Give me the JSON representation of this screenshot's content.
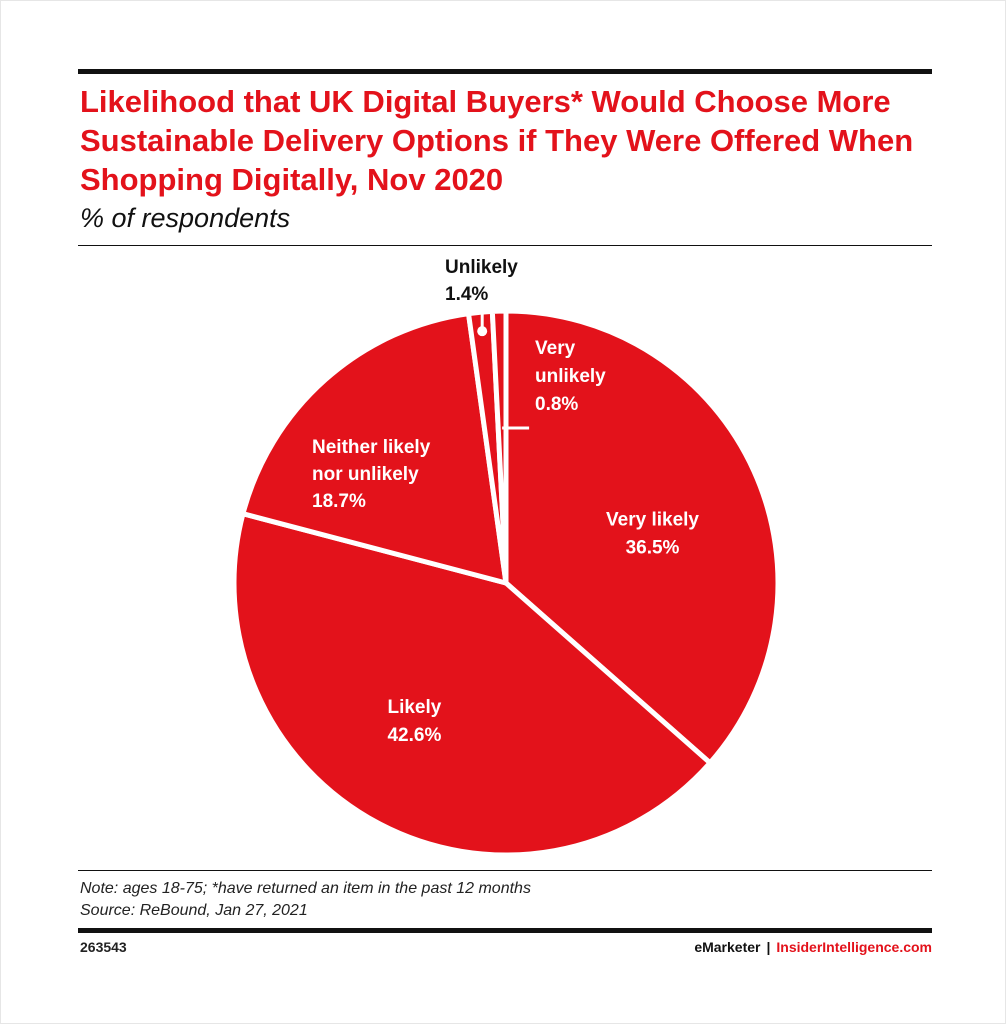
{
  "title": "Likelihood that UK Digital Buyers* Would Choose More Sustainable Delivery Options if They Were Offered When Shopping Digitally, Nov 2020",
  "subtitle": "% of respondents",
  "note": "Note: ages 18-75; *have returned an item in the past 12 months",
  "source": "Source: ReBound, Jan 27, 2021",
  "chart_id": "263543",
  "branding": {
    "emarketer": "eMarketer",
    "separator": "|",
    "insider": "InsiderIntelligence.com"
  },
  "colors": {
    "accent": "#e3121b",
    "text": "#111111",
    "background": "#ffffff"
  },
  "chart_data": {
    "type": "pie",
    "title": "Likelihood that UK Digital Buyers* Would Choose More Sustainable Delivery Options if They Were Offered When Shopping Digitally, Nov 2020",
    "subtitle": "% of respondents",
    "unit": "%",
    "slices": [
      {
        "label": "Very likely",
        "value": 36.5,
        "value_label": "36.5%"
      },
      {
        "label": "Likely",
        "value": 42.6,
        "value_label": "42.6%"
      },
      {
        "label": "Neither likely nor unlikely",
        "value": 18.7,
        "value_label": "18.7%"
      },
      {
        "label": "Unlikely",
        "value": 1.4,
        "value_label": "1.4%"
      },
      {
        "label": "Very unlikely",
        "value": 0.8,
        "value_label": "0.8%"
      }
    ]
  }
}
